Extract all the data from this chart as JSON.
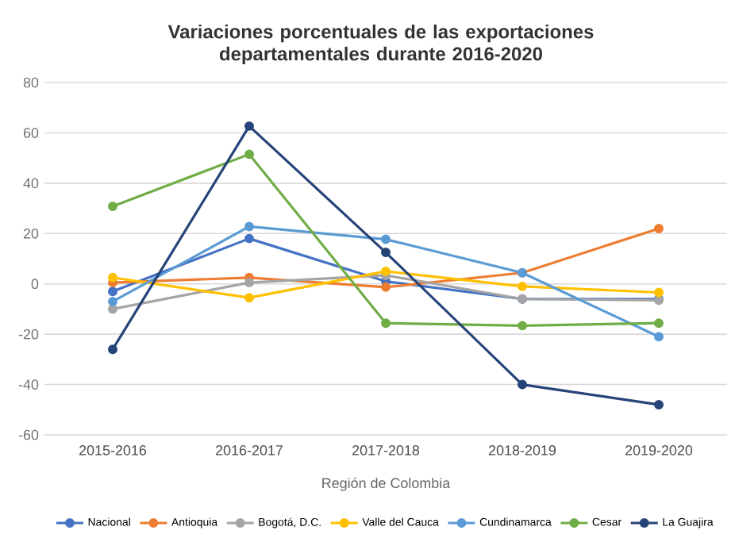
{
  "chart_data": {
    "type": "line",
    "title": "Variaciones porcentuales de las exportaciones departamentales durante 2016-2020",
    "xlabel": "Región de Colombia",
    "categories": [
      "2015-2016",
      "2016-2017",
      "2017-2018",
      "2018-2019",
      "2019-2020"
    ],
    "ylim": [
      -60,
      80
    ],
    "yticks": [
      -60,
      -40,
      -20,
      0,
      20,
      40,
      60,
      80
    ],
    "grid": "y",
    "legend": "bottom",
    "marker": "circle",
    "series": [
      {
        "name": "Nacional",
        "color": "#4472c4",
        "values": [
          -3,
          18,
          1,
          -6,
          -6
        ]
      },
      {
        "name": "Antioquia",
        "color": "#ed7d31",
        "values": [
          0.5,
          2.5,
          -1.3,
          4.4,
          22
        ]
      },
      {
        "name": "Bogotá, D.C.",
        "color": "#a5a5a5",
        "values": [
          -10,
          0.5,
          3.4,
          -6,
          -6.5
        ]
      },
      {
        "name": "Valle del Cauca",
        "color": "#ffc000",
        "values": [
          2.5,
          -5.5,
          5,
          -1,
          -3.4
        ]
      },
      {
        "name": "Cundinamarca",
        "color": "#5b9bd5",
        "values": [
          -7,
          22.8,
          17.7,
          4.4,
          -21
        ]
      },
      {
        "name": "Cesar",
        "color": "#70ad47",
        "values": [
          30.8,
          51.5,
          -15.6,
          -16.6,
          -15.6
        ]
      },
      {
        "name": "La Guajira",
        "color": "#264478",
        "values": [
          -26,
          62.7,
          12.5,
          -40,
          -48
        ]
      }
    ]
  }
}
